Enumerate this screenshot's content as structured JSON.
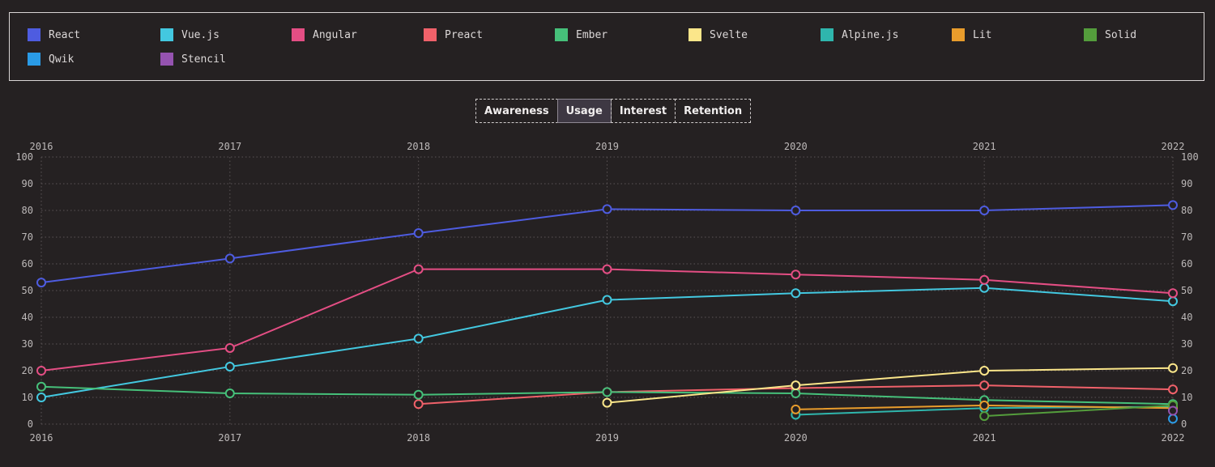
{
  "legend": {
    "items": [
      {
        "label": "React",
        "color": "#4e5ce0"
      },
      {
        "label": "Vue.js",
        "color": "#43c8e0"
      },
      {
        "label": "Angular",
        "color": "#e44e84"
      },
      {
        "label": "Preact",
        "color": "#f0616a"
      },
      {
        "label": "Ember",
        "color": "#46c07a"
      },
      {
        "label": "Svelte",
        "color": "#fbe68a"
      },
      {
        "label": "Alpine.js",
        "color": "#2fb6ad"
      },
      {
        "label": "Lit",
        "color": "#e89c2c"
      },
      {
        "label": "Solid",
        "color": "#549d3c"
      },
      {
        "label": "Qwik",
        "color": "#2a9be6"
      },
      {
        "label": "Stencil",
        "color": "#9553b0"
      }
    ]
  },
  "tabs": [
    {
      "label": "Awareness",
      "active": false
    },
    {
      "label": "Usage",
      "active": true
    },
    {
      "label": "Interest",
      "active": false
    },
    {
      "label": "Retention",
      "active": false
    }
  ],
  "chart_data": {
    "type": "line",
    "x": [
      "2016",
      "2017",
      "2018",
      "2019",
      "2020",
      "2021",
      "2022"
    ],
    "ylim": [
      0,
      100
    ],
    "yticks": [
      0,
      10,
      20,
      30,
      40,
      50,
      60,
      70,
      80,
      90,
      100
    ],
    "grid": true,
    "legend_position": "top",
    "series": [
      {
        "name": "React",
        "color": "#4e5ce0",
        "values": [
          53,
          62,
          71.5,
          80.5,
          80,
          80,
          82
        ]
      },
      {
        "name": "Vue.js",
        "color": "#43c8e0",
        "values": [
          10,
          21.5,
          32,
          46.5,
          49,
          51,
          46
        ]
      },
      {
        "name": "Angular",
        "color": "#e44e84",
        "values": [
          20,
          28.5,
          58,
          58,
          56,
          54,
          49
        ]
      },
      {
        "name": "Preact",
        "color": "#f0616a",
        "values": [
          null,
          null,
          7.5,
          12,
          13.5,
          14.5,
          13
        ]
      },
      {
        "name": "Ember",
        "color": "#46c07a",
        "values": [
          14,
          11.5,
          11,
          12,
          11.5,
          9,
          7.5
        ]
      },
      {
        "name": "Svelte",
        "color": "#fbe68a",
        "values": [
          null,
          null,
          null,
          8,
          14.5,
          20,
          21
        ]
      },
      {
        "name": "Alpine.js",
        "color": "#2fb6ad",
        "values": [
          null,
          null,
          null,
          null,
          3.5,
          6,
          6.5
        ]
      },
      {
        "name": "Lit",
        "color": "#e89c2c",
        "values": [
          null,
          null,
          null,
          null,
          5.5,
          7,
          6
        ]
      },
      {
        "name": "Solid",
        "color": "#549d3c",
        "values": [
          null,
          null,
          null,
          null,
          null,
          3,
          7
        ]
      },
      {
        "name": "Qwik",
        "color": "#2a9be6",
        "values": [
          null,
          null,
          null,
          null,
          null,
          null,
          2
        ]
      },
      {
        "name": "Stencil",
        "color": "#9553b0",
        "values": [
          null,
          null,
          null,
          null,
          null,
          null,
          5
        ]
      }
    ]
  }
}
